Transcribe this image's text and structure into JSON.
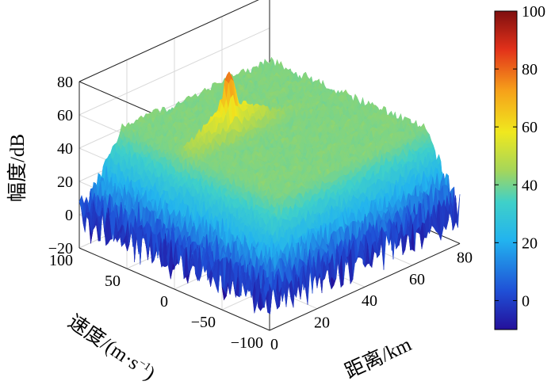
{
  "chart_data": {
    "type": "surface",
    "title": "",
    "zlabel": "幅度/dB",
    "ylabel_main": "速度/(m·s",
    "ylabel_sup": "−1",
    "ylabel_close": ")",
    "xlabel": "距离/km",
    "x_axis": {
      "range": [
        0,
        80
      ],
      "ticks": [
        "0",
        "20",
        "40",
        "60",
        "80"
      ]
    },
    "y_axis": {
      "range": [
        -100,
        100
      ],
      "ticks": [
        "−100",
        "−50",
        "0",
        "50",
        "100"
      ]
    },
    "z_axis": {
      "range": [
        -20,
        80
      ],
      "ticks": [
        "−20",
        "0",
        "20",
        "40",
        "60",
        "80"
      ]
    },
    "surface": {
      "x_extent": [
        0,
        80
      ],
      "y_extent": [
        -100,
        100
      ],
      "floor_level_db": 40,
      "peak": {
        "x": 35,
        "y": 30,
        "z": 80
      },
      "ridge": {
        "along": "x",
        "y": 30,
        "level_db": 60
      },
      "near_edge_min_db": -15
    },
    "colorbar": {
      "range": [
        -10,
        100
      ],
      "ticks": [
        "0",
        "20",
        "40",
        "60",
        "80",
        "100"
      ],
      "colormap": [
        "#24109a",
        "#1f4fd6",
        "#22b3ef",
        "#3fd0c9",
        "#a5d65a",
        "#f0e81e",
        "#f6a11a",
        "#e2311a",
        "#7f0f0f"
      ]
    },
    "grid": true
  }
}
